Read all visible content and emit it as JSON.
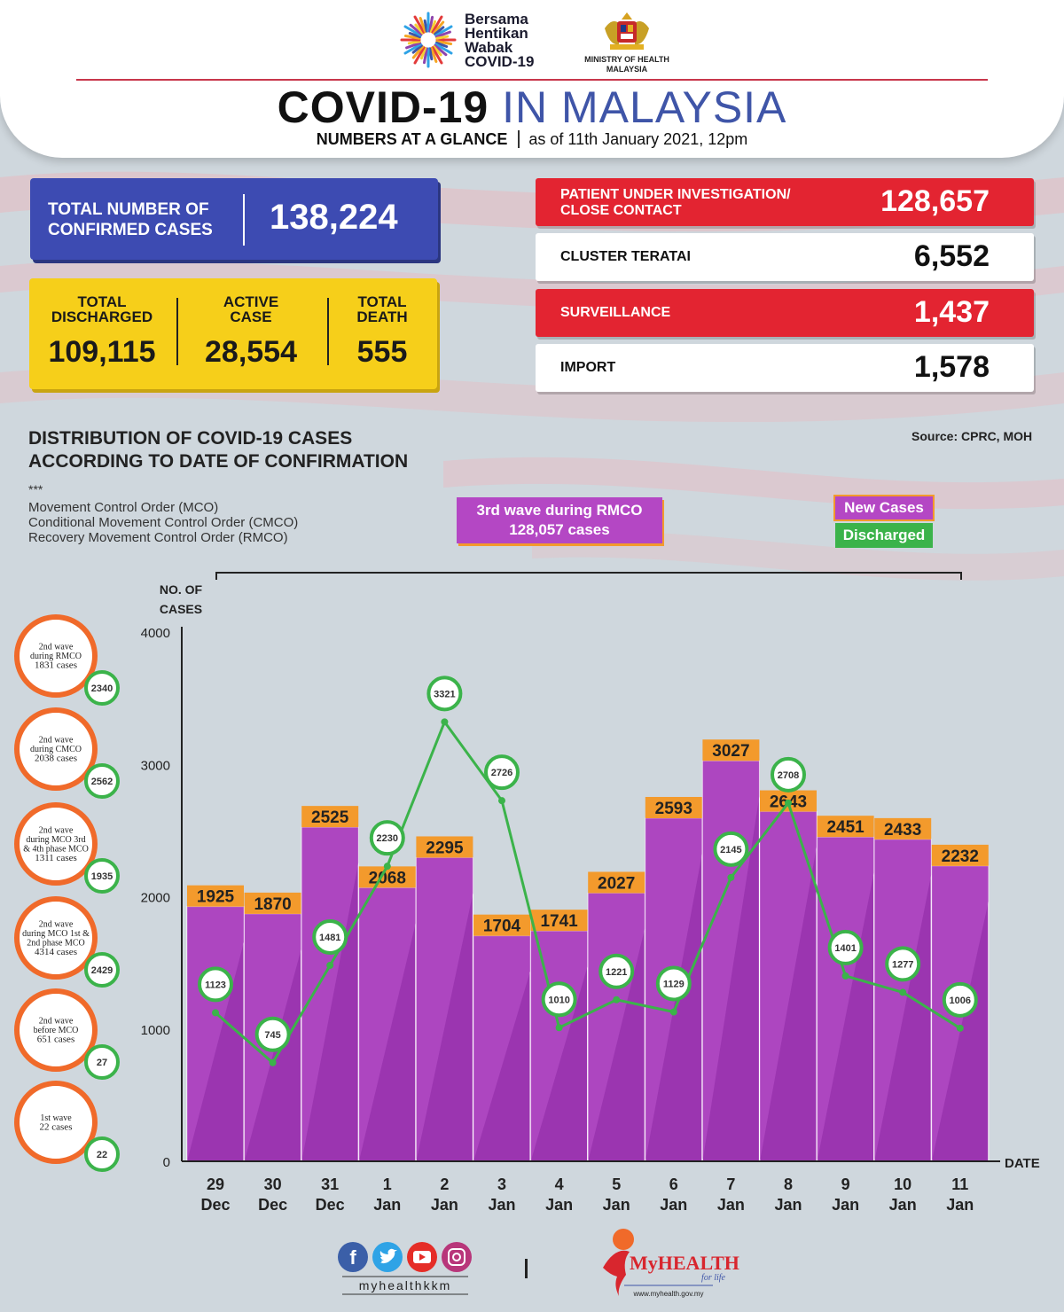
{
  "header": {
    "logo_text": [
      "Bersama",
      "Hentikan",
      "Wabak",
      "COVID-19"
    ],
    "ministry": [
      "MINISTRY OF HEALTH",
      "MALAYSIA"
    ],
    "title_bold": "COVID-19",
    "title_light": "IN MALAYSIA",
    "subtitle_bold": "NUMBERS AT A GLANCE",
    "subtitle_date": "as of 11th January 2021, 12pm"
  },
  "stats": {
    "total_confirmed_label_1": "TOTAL NUMBER OF",
    "total_confirmed_label_2": "CONFIRMED CASES",
    "total_confirmed": "138,224",
    "discharged_label_1": "TOTAL",
    "discharged_label_2": "DISCHARGED",
    "discharged": "109,115",
    "active_label_1": "ACTIVE",
    "active_label_2": "CASE",
    "active": "28,554",
    "death_label_1": "TOTAL",
    "death_label_2": "DEATH",
    "death": "555",
    "pui_label_1": "PATIENT UNDER INVESTIGATION/",
    "pui_label_2": "CLOSE CONTACT",
    "pui": "128,657",
    "cluster_label": "CLUSTER TERATAI",
    "cluster": "6,552",
    "surveillance_label": "SURVEILLANCE",
    "surveillance": "1,437",
    "import_label": "IMPORT",
    "import": "1,578"
  },
  "section": {
    "title_1": "DISTRIBUTION OF COVID-19 CASES",
    "title_2": "ACCORDING TO DATE OF CONFIRMATION",
    "source": "Source: CPRC, MOH",
    "stars": "***",
    "notes": [
      "Movement Control Order (MCO)",
      "Conditional Movement Control Order (CMCO)",
      "Recovery Movement Control Order (RMCO)"
    ],
    "wave_box_1": "3rd wave during RMCO",
    "wave_box_2": "128,057 cases",
    "legend_new": "New Cases",
    "legend_discharged": "Discharged"
  },
  "chart_data": {
    "type": "bar",
    "ylabel_1": "NO. OF",
    "ylabel_2": "CASES",
    "xlabel": "DATE",
    "ylim": [
      0,
      4000
    ],
    "yticks": [
      0,
      1000,
      2000,
      3000,
      4000
    ],
    "categories": [
      [
        "29",
        "Dec"
      ],
      [
        "30",
        "Dec"
      ],
      [
        "31",
        "Dec"
      ],
      [
        "1",
        "Jan"
      ],
      [
        "2",
        "Jan"
      ],
      [
        "3",
        "Jan"
      ],
      [
        "4",
        "Jan"
      ],
      [
        "5",
        "Jan"
      ],
      [
        "6",
        "Jan"
      ],
      [
        "7",
        "Jan"
      ],
      [
        "8",
        "Jan"
      ],
      [
        "9",
        "Jan"
      ],
      [
        "10",
        "Jan"
      ],
      [
        "11",
        "Jan"
      ]
    ],
    "series": [
      {
        "name": "New Cases",
        "values": [
          1925,
          1870,
          2525,
          2068,
          2295,
          1704,
          1741,
          2027,
          2593,
          3027,
          2643,
          2451,
          2433,
          2232
        ]
      },
      {
        "name": "Discharged",
        "values": [
          1123,
          745,
          1481,
          2230,
          3321,
          2726,
          1010,
          1221,
          1129,
          2145,
          2708,
          1401,
          1277,
          1006
        ]
      }
    ],
    "waves": [
      {
        "lines": [
          "2nd wave",
          "during RMCO",
          "1831 cases"
        ],
        "discharged": "2340"
      },
      {
        "lines": [
          "2nd wave",
          "during CMCO",
          "2038 cases"
        ],
        "discharged": "2562"
      },
      {
        "lines": [
          "2nd wave",
          "during MCO 3rd",
          "& 4th phase MCO",
          "1311 cases"
        ],
        "discharged": "1935"
      },
      {
        "lines": [
          "2nd wave",
          "during MCO 1st &",
          "2nd phase MCO",
          "4314 cases"
        ],
        "discharged": "2429"
      },
      {
        "lines": [
          "2nd wave",
          "before MCO",
          "651 cases"
        ],
        "discharged": "27"
      },
      {
        "lines": [
          "1st wave",
          "22 cases"
        ],
        "discharged": "22"
      }
    ],
    "colors": {
      "bar": "#9b35b0",
      "bar_stripe": "#b54fc8",
      "label": "#f39a2c",
      "line": "#3bb34a",
      "wave_ring": "#f06a2a"
    }
  },
  "footer": {
    "handle": "myhealthkkm",
    "brand": "MyHEALTH",
    "tagline": "for life",
    "url": "www.myhealth.gov.my",
    "social_icons": [
      "facebook-icon",
      "twitter-icon",
      "youtube-icon",
      "instagram-icon"
    ]
  }
}
